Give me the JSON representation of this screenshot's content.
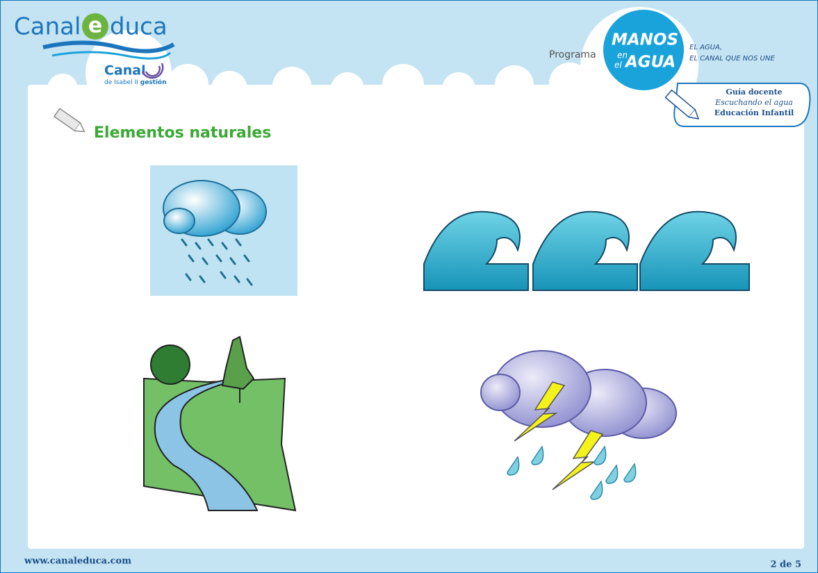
{
  "header": {
    "logo": {
      "brand_left": "Canal",
      "brand_e": "e",
      "brand_right": "duca",
      "sub_brand": "Canal",
      "sub_text": "de Isabel II",
      "sub_text_bold": "gestión"
    },
    "program": {
      "label": "Programa",
      "badge_line1": "MANOS",
      "badge_en": "en",
      "badge_el": "el",
      "badge_line2": "AGUA",
      "slogan_1": "EL AGUA,",
      "slogan_2": "EL CANAL QUE NOS UNE"
    },
    "guide": {
      "line1": "Guía docente",
      "line2": "Escuchando el agua",
      "line3": "Educación Infantil"
    }
  },
  "section": {
    "title": "Elementos naturales"
  },
  "footer": {
    "url": "www.canaleduca.com",
    "page": "2 de 5"
  }
}
